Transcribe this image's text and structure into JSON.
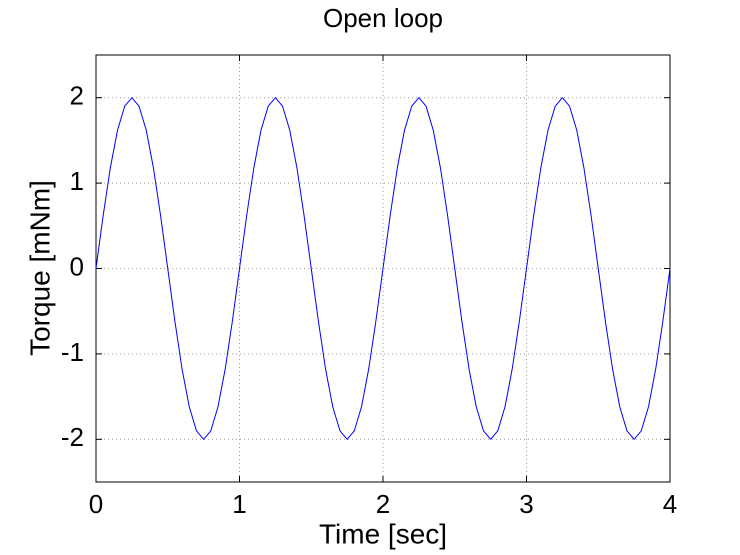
{
  "chart_data": {
    "type": "line",
    "title": "Open loop",
    "xlabel": "Time [sec]",
    "ylabel": "Torque [mNm]",
    "x": [
      0,
      0.05,
      0.1,
      0.15,
      0.2,
      0.25,
      0.3,
      0.35,
      0.4,
      0.45,
      0.5,
      0.55,
      0.6,
      0.65,
      0.7,
      0.75,
      0.8,
      0.85,
      0.9,
      0.95,
      1,
      1.05,
      1.1,
      1.15,
      1.2,
      1.25,
      1.3,
      1.35,
      1.4,
      1.45,
      1.5,
      1.55,
      1.6,
      1.65,
      1.7,
      1.75,
      1.8,
      1.85,
      1.9,
      1.95,
      2,
      2.05,
      2.1,
      2.15,
      2.2,
      2.25,
      2.3,
      2.35,
      2.4,
      2.45,
      2.5,
      2.55,
      2.6,
      2.65,
      2.7,
      2.75,
      2.8,
      2.85,
      2.9,
      2.95,
      3,
      3.05,
      3.1,
      3.15,
      3.2,
      3.25,
      3.3,
      3.35,
      3.4,
      3.45,
      3.5,
      3.55,
      3.6,
      3.65,
      3.7,
      3.75,
      3.8,
      3.85,
      3.9,
      3.95,
      4
    ],
    "series": [
      {
        "color": "#0000ff",
        "values": [
          0,
          0.62,
          1.18,
          1.62,
          1.9,
          2,
          1.9,
          1.62,
          1.18,
          0.62,
          0,
          -0.62,
          -1.18,
          -1.62,
          -1.9,
          -2,
          -1.9,
          -1.62,
          -1.18,
          -0.62,
          0,
          0.62,
          1.18,
          1.62,
          1.9,
          2,
          1.9,
          1.62,
          1.18,
          0.62,
          0,
          -0.62,
          -1.18,
          -1.62,
          -1.9,
          -2,
          -1.9,
          -1.62,
          -1.18,
          -0.62,
          0,
          0.62,
          1.18,
          1.62,
          1.9,
          2,
          1.9,
          1.62,
          1.18,
          0.62,
          0,
          -0.62,
          -1.18,
          -1.62,
          -1.9,
          -2,
          -1.9,
          -1.62,
          -1.18,
          -0.62,
          0,
          0.62,
          1.18,
          1.62,
          1.9,
          2,
          1.9,
          1.62,
          1.18,
          0.62,
          0,
          -0.62,
          -1.18,
          -1.62,
          -1.9,
          -2,
          -1.9,
          -1.62,
          -1.18,
          -0.62,
          0
        ]
      }
    ],
    "xlim": [
      0,
      4
    ],
    "xticks": [
      0,
      1,
      2,
      3,
      4
    ],
    "ylim": [
      -2.5,
      2.5
    ],
    "yticks": [
      -2,
      -1,
      0,
      1,
      2
    ],
    "grid": true
  }
}
